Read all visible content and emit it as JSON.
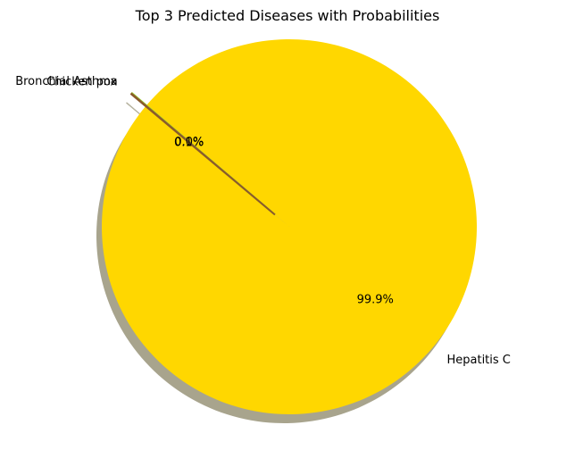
{
  "chart_data": {
    "type": "pie",
    "title": "Top 3 Predicted Diseases with Probabilities",
    "slices": [
      {
        "label": "Hepatitis C",
        "value": 99.9,
        "pct_label": "99.9%",
        "color": "#ffd700",
        "explode": false
      },
      {
        "label": "Bronchial Asthma",
        "value": 0.05,
        "pct_label": "0.0%",
        "color": "#9acd32",
        "explode": true
      },
      {
        "label": "Chicken pox",
        "value": 0.05,
        "pct_label": "0.1%",
        "color": "#8b5a2b",
        "explode": true
      }
    ],
    "start_angle": 140,
    "shadow": true,
    "legend": "none"
  }
}
